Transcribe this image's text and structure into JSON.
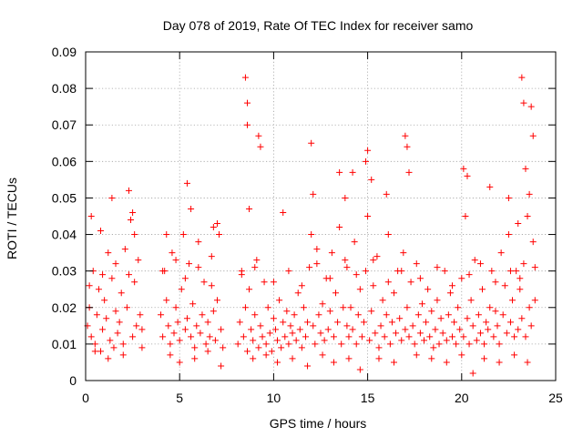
{
  "chart_data": {
    "type": "scatter",
    "title": "Day 078 of 2019, Rate Of TEC Index for receiver samo",
    "xlabel": "GPS time / hours",
    "ylabel": "ROTI / TECUs",
    "xlim": [
      0,
      25
    ],
    "ylim": [
      0,
      0.09
    ],
    "x_ticks": [
      "0",
      "5",
      "10",
      "15",
      "20",
      "25"
    ],
    "y_ticks": [
      "0",
      "0.01",
      "0.02",
      "0.03",
      "0.04",
      "0.05",
      "0.06",
      "0.07",
      "0.08",
      "0.09"
    ],
    "grid": true,
    "legend": "none",
    "marker": "plus",
    "color": "#ff0000",
    "series": [
      {
        "x": [
          0.1,
          0.2,
          0.3,
          0.4,
          0.5,
          0.6,
          0.7,
          0.8,
          0.9,
          1.0,
          1.1,
          1.2,
          1.3,
          1.4,
          1.5,
          1.6,
          1.7,
          1.8,
          1.9,
          2.0,
          2.1,
          2.2,
          2.3,
          2.4,
          2.5,
          2.6,
          2.7,
          2.8,
          2.9,
          3.0,
          4.0,
          4.1,
          4.2,
          4.3,
          4.4,
          4.5,
          4.6,
          4.7,
          4.8,
          4.9,
          5.0,
          5.1,
          5.2,
          5.3,
          5.4,
          5.5,
          5.6,
          5.7,
          5.8,
          5.9,
          6.0,
          6.1,
          6.2,
          6.3,
          6.4,
          6.5,
          6.6,
          6.7,
          6.8,
          6.9,
          7.0,
          7.1,
          7.2,
          7.3,
          8.1,
          8.2,
          8.3,
          8.4,
          8.5,
          8.6,
          8.7,
          8.8,
          8.9,
          9.0,
          9.1,
          9.2,
          9.3,
          9.4,
          9.5,
          9.6,
          9.7,
          9.8,
          9.9,
          10.0,
          10.1,
          10.2,
          10.3,
          10.4,
          10.5,
          10.6,
          10.7,
          10.8,
          10.9,
          11.0,
          11.1,
          11.2,
          11.3,
          11.4,
          11.5,
          11.6,
          11.7,
          11.8,
          11.9,
          12.0,
          12.1,
          12.2,
          12.3,
          12.4,
          12.5,
          12.6,
          12.7,
          12.8,
          12.9,
          13.0,
          13.1,
          13.2,
          13.3,
          13.4,
          13.5,
          13.6,
          13.7,
          13.8,
          13.9,
          14.0,
          14.1,
          14.2,
          14.3,
          14.4,
          14.5,
          14.6,
          14.7,
          14.8,
          14.9,
          15.0,
          15.1,
          15.2,
          15.3,
          15.4,
          15.5,
          15.6,
          15.7,
          15.8,
          15.9,
          16.0,
          16.1,
          16.2,
          16.3,
          16.4,
          16.5,
          16.6,
          16.7,
          16.8,
          16.9,
          17.0,
          17.1,
          17.2,
          17.3,
          17.4,
          17.5,
          17.6,
          17.7,
          17.8,
          17.9,
          18.0,
          18.1,
          18.2,
          18.3,
          18.4,
          18.5,
          18.6,
          18.7,
          18.8,
          18.9,
          19.0,
          19.1,
          19.2,
          19.3,
          19.4,
          19.5,
          19.6,
          19.7,
          19.8,
          19.9,
          20.0,
          20.1,
          20.2,
          20.3,
          20.4,
          20.5,
          20.6,
          20.7,
          20.8,
          20.9,
          21.0,
          21.1,
          21.2,
          21.3,
          21.4,
          21.5,
          21.6,
          21.7,
          21.8,
          21.9,
          22.0,
          22.1,
          22.2,
          22.3,
          22.4,
          22.5,
          22.6,
          22.7,
          22.8,
          22.9,
          23.0,
          23.1,
          23.2,
          23.3,
          23.4,
          23.5,
          23.6,
          23.7,
          23.8,
          23.9,
          0.3,
          0.8,
          1.4,
          2.3,
          2.5,
          4.3,
          5.4,
          5.6,
          6.8,
          7.0,
          8.5,
          8.6,
          8.6,
          8.7,
          9.2,
          9.3,
          10.5,
          12.0,
          12.1,
          13.5,
          13.8,
          14.2,
          14.9,
          15.0,
          15.2,
          16.0,
          17.0,
          17.1,
          17.2,
          20.1,
          20.3,
          21.5,
          22.5,
          23.0,
          23.2,
          23.3,
          23.4,
          23.6,
          23.7,
          23.8,
          0.5,
          1.2,
          2.0,
          3.0,
          4.5,
          5.0,
          5.8,
          6.5,
          7.2,
          8.9,
          9.6,
          10.2,
          11.0,
          11.8,
          12.6,
          13.2,
          14.0,
          14.6,
          15.6,
          16.4,
          17.6,
          18.4,
          19.2,
          20.0,
          20.6,
          21.2,
          22.0,
          22.8,
          23.5,
          0.2,
          0.9,
          1.6,
          2.6,
          4.1,
          4.8,
          5.3,
          6.0,
          6.7,
          8.3,
          9.0,
          10.0,
          10.8,
          11.5,
          12.3,
          13.0,
          13.9,
          14.4,
          15.3,
          16.1,
          16.8,
          17.8,
          18.7,
          19.5,
          20.4,
          21.0,
          21.8,
          22.6,
          23.1,
          23.9
        ],
        "y": [
          0.015,
          0.02,
          0.012,
          0.03,
          0.01,
          0.018,
          0.025,
          0.008,
          0.014,
          0.022,
          0.017,
          0.035,
          0.011,
          0.028,
          0.009,
          0.019,
          0.013,
          0.016,
          0.024,
          0.01,
          0.036,
          0.02,
          0.029,
          0.044,
          0.012,
          0.04,
          0.015,
          0.033,
          0.018,
          0.014,
          0.018,
          0.012,
          0.03,
          0.022,
          0.015,
          0.01,
          0.035,
          0.013,
          0.02,
          0.016,
          0.011,
          0.025,
          0.04,
          0.014,
          0.017,
          0.032,
          0.012,
          0.021,
          0.009,
          0.015,
          0.038,
          0.013,
          0.018,
          0.027,
          0.01,
          0.016,
          0.012,
          0.034,
          0.019,
          0.011,
          0.022,
          0.04,
          0.014,
          0.009,
          0.01,
          0.016,
          0.03,
          0.012,
          0.02,
          0.008,
          0.025,
          0.014,
          0.011,
          0.018,
          0.033,
          0.009,
          0.015,
          0.012,
          0.027,
          0.01,
          0.02,
          0.013,
          0.008,
          0.017,
          0.014,
          0.011,
          0.022,
          0.009,
          0.016,
          0.012,
          0.019,
          0.01,
          0.015,
          0.013,
          0.018,
          0.011,
          0.024,
          0.014,
          0.009,
          0.02,
          0.012,
          0.016,
          0.031,
          0.04,
          0.015,
          0.01,
          0.036,
          0.018,
          0.013,
          0.021,
          0.011,
          0.028,
          0.014,
          0.019,
          0.035,
          0.012,
          0.024,
          0.016,
          0.042,
          0.01,
          0.02,
          0.033,
          0.015,
          0.012,
          0.02,
          0.014,
          0.038,
          0.01,
          0.018,
          0.025,
          0.012,
          0.016,
          0.03,
          0.045,
          0.011,
          0.019,
          0.026,
          0.013,
          0.034,
          0.009,
          0.015,
          0.022,
          0.012,
          0.018,
          0.04,
          0.01,
          0.016,
          0.024,
          0.013,
          0.03,
          0.017,
          0.011,
          0.035,
          0.014,
          0.02,
          0.012,
          0.027,
          0.015,
          0.01,
          0.032,
          0.018,
          0.013,
          0.021,
          0.011,
          0.016,
          0.025,
          0.012,
          0.019,
          0.009,
          0.014,
          0.022,
          0.01,
          0.017,
          0.013,
          0.03,
          0.011,
          0.018,
          0.024,
          0.012,
          0.016,
          0.01,
          0.02,
          0.014,
          0.028,
          0.012,
          0.045,
          0.017,
          0.01,
          0.022,
          0.015,
          0.033,
          0.011,
          0.018,
          0.013,
          0.025,
          0.01,
          0.016,
          0.014,
          0.02,
          0.03,
          0.012,
          0.019,
          0.015,
          0.01,
          0.035,
          0.018,
          0.026,
          0.013,
          0.04,
          0.016,
          0.022,
          0.012,
          0.03,
          0.014,
          0.025,
          0.017,
          0.032,
          0.012,
          0.045,
          0.02,
          0.015,
          0.038,
          0.022,
          0.045,
          0.041,
          0.05,
          0.052,
          0.046,
          0.04,
          0.054,
          0.047,
          0.042,
          0.043,
          0.083,
          0.076,
          0.07,
          0.047,
          0.067,
          0.064,
          0.046,
          0.065,
          0.051,
          0.057,
          0.05,
          0.057,
          0.06,
          0.063,
          0.055,
          0.051,
          0.067,
          0.064,
          0.057,
          0.058,
          0.056,
          0.053,
          0.05,
          0.043,
          0.083,
          0.076,
          0.058,
          0.051,
          0.075,
          0.067,
          0.008,
          0.006,
          0.007,
          0.009,
          0.007,
          0.005,
          0.006,
          0.008,
          0.004,
          0.006,
          0.007,
          0.005,
          0.006,
          0.004,
          0.007,
          0.005,
          0.006,
          0.003,
          0.006,
          0.005,
          0.007,
          0.006,
          0.005,
          0.007,
          0.002,
          0.006,
          0.005,
          0.007,
          0.005,
          0.026,
          0.029,
          0.032,
          0.027,
          0.03,
          0.033,
          0.028,
          0.031,
          0.026,
          0.029,
          0.031,
          0.027,
          0.03,
          0.026,
          0.032,
          0.028,
          0.031,
          0.029,
          0.033,
          0.027,
          0.03,
          0.028,
          0.031,
          0.026,
          0.029,
          0.032,
          0.027,
          0.03,
          0.028,
          0.031
        ]
      }
    ]
  }
}
